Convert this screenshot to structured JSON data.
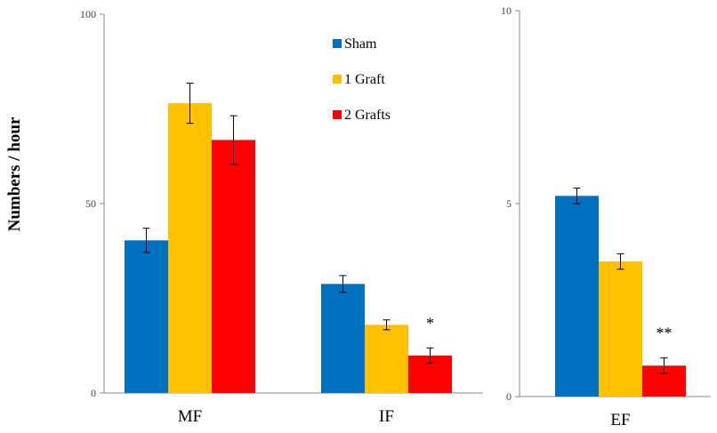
{
  "ylabel": "Numbers / hour",
  "legend": [
    {
      "name": "Sham",
      "color": "#0070c0"
    },
    {
      "name": "1 Graft",
      "color": "#ffc000"
    },
    {
      "name": "2 Grafts",
      "color": "#ff0000"
    }
  ],
  "chart_data": [
    {
      "type": "bar",
      "categories": [
        "MF",
        "IF"
      ],
      "yticks": [
        "0",
        "50",
        "100"
      ],
      "ylim": [
        0,
        100
      ],
      "grid": false,
      "legend_position": "top-center",
      "series": [
        {
          "name": "Sham",
          "color": "#0070c0",
          "values": [
            40.3,
            28.8
          ],
          "errors": [
            3.2,
            2.2
          ]
        },
        {
          "name": "1 Graft",
          "color": "#ffc000",
          "values": [
            76.5,
            18
          ],
          "errors": [
            5.3,
            1.3
          ]
        },
        {
          "name": "2 Grafts",
          "color": "#ff0000",
          "values": [
            66.8,
            9.9
          ],
          "errors": [
            6.4,
            2.0
          ]
        }
      ],
      "annotations": [
        {
          "category": "IF",
          "series": "2 Grafts",
          "text": "*"
        }
      ]
    },
    {
      "type": "bar",
      "categories": [
        "EF"
      ],
      "yticks": [
        "0",
        "5",
        "10"
      ],
      "ylim": [
        0,
        10
      ],
      "grid": false,
      "series": [
        {
          "name": "Sham",
          "color": "#0070c0",
          "values": [
            5.2
          ],
          "errors": [
            0.2
          ]
        },
        {
          "name": "1 Graft",
          "color": "#ffc000",
          "values": [
            3.5
          ],
          "errors": [
            0.2
          ]
        },
        {
          "name": "2 Grafts",
          "color": "#ff0000",
          "values": [
            0.8
          ],
          "errors": [
            0.2
          ]
        }
      ],
      "annotations": [
        {
          "category": "EF",
          "series": "2 Grafts",
          "text": "**"
        }
      ]
    }
  ]
}
